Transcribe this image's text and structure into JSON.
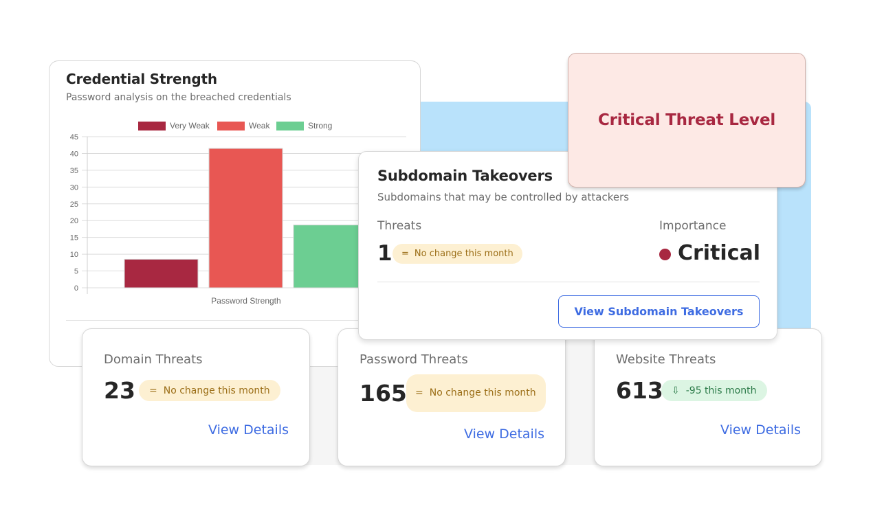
{
  "credential_card": {
    "title": "Credential Strength",
    "subtitle": "Password analysis on the breached credentials"
  },
  "chart_data": {
    "type": "bar",
    "categories": [
      "Very Weak",
      "Weak",
      "Strong"
    ],
    "values": [
      8.5,
      41.5,
      18.7
    ],
    "colors": [
      "#a82841",
      "#e85753",
      "#6cce92"
    ],
    "legend": [
      "Very Weak",
      "Weak",
      "Strong"
    ],
    "legend_position": "top",
    "xlabel": "Password Strength",
    "ylabel": "",
    "ylim": [
      0,
      45
    ],
    "yticks": [
      0,
      5,
      10,
      15,
      20,
      25,
      30,
      35,
      40,
      45
    ],
    "grid": true
  },
  "critical_box": {
    "label": "Critical Threat Level"
  },
  "subdomain_card": {
    "title": "Subdomain Takeovers",
    "subtitle": "Subdomains that may be controlled by attackers",
    "threats_label": "Threats",
    "importance_label": "Importance",
    "count": "1",
    "change_icon": "=",
    "change_text": "No change this month",
    "importance_value": "Critical",
    "button_label": "View Subdomain Takeovers"
  },
  "threat_cards": [
    {
      "label": "Domain Threats",
      "value": "23",
      "change_icon": "=",
      "change_text": "No change this month",
      "link": "View Details"
    },
    {
      "label": "Password Threats",
      "value": "165",
      "change_icon": "=",
      "change_text": "No change this month",
      "link": "View Details"
    },
    {
      "label": "Website Threats",
      "value": "613",
      "change_icon": "⇩",
      "change_text": "-95 this month",
      "link": "View Details"
    }
  ]
}
